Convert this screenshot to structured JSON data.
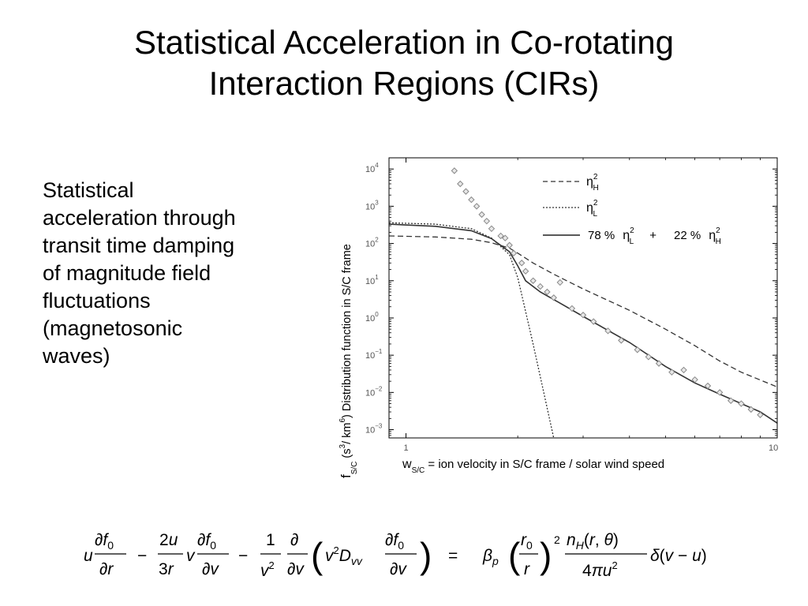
{
  "slide": {
    "title_lines": [
      "Statistical Acceleration in Co-rotating",
      "Interaction Regions (CIRs)"
    ],
    "body_lines": [
      "Statistical",
      "acceleration through",
      "transit time damping",
      "of magnitude field",
      "fluctuations",
      "(magnetosonic",
      "waves)"
    ]
  },
  "chart_data": {
    "type": "line",
    "xscale": "log",
    "yscale": "log",
    "xlim": [
      0.9,
      10
    ],
    "ylim": [
      0.0006,
      20000
    ],
    "y_tick_values": [
      0.001,
      0.01,
      0.1,
      1,
      10,
      100,
      1000,
      10000
    ],
    "y_tick_labels": [
      [
        "10",
        "−3"
      ],
      [
        "10",
        "−2"
      ],
      [
        "10",
        "−1"
      ],
      [
        "10",
        "0"
      ],
      [
        "10",
        "1"
      ],
      [
        "10",
        "2"
      ],
      [
        "10",
        "3"
      ],
      [
        "10",
        "4"
      ]
    ],
    "x_tick_values": [
      1,
      10
    ],
    "x_tick_labels": [
      "1",
      "10"
    ],
    "ylabel": {
      "main": "f",
      "sub": "S/C",
      "open": " (s",
      "sup1": "3",
      "mid": "/ km",
      "sup2": "6",
      "close": ") Distribution function in S/C frame"
    },
    "xlabel": {
      "main": "w",
      "sub": "S/C",
      "rest": " = ion velocity in S/C frame / solar wind speed"
    },
    "legend": {
      "position": "top-right",
      "items": [
        {
          "style": "dashed",
          "symbol": "η",
          "sup": "2",
          "sub": "H"
        },
        {
          "style": "dotted",
          "symbol": "η",
          "sup": "2",
          "sub": "L"
        },
        {
          "style": "solid",
          "pct1": "78 %",
          "sym1": "η",
          "sup1": "2",
          "sub1": "L",
          "plus": "+",
          "pct2": "22 %",
          "sym2": "η",
          "sup2": "2",
          "sub2": "H"
        }
      ]
    },
    "series": [
      {
        "style": "dashed",
        "x": [
          0.9,
          1.2,
          1.5,
          1.7,
          1.9,
          2.0,
          2.2,
          2.5,
          3.0,
          4.0,
          5.0,
          6.0,
          7.0,
          8.0,
          10.0
        ],
        "y": [
          160,
          150,
          130,
          105,
          75,
          55,
          30,
          15,
          6,
          1.6,
          0.5,
          0.18,
          0.07,
          0.035,
          0.014
        ]
      },
      {
        "style": "dotted",
        "x": [
          0.9,
          1.2,
          1.5,
          1.7,
          1.9,
          2.0,
          2.1,
          2.2,
          2.35,
          2.5
        ],
        "y": [
          360,
          330,
          250,
          140,
          50,
          12,
          1.5,
          0.2,
          0.01,
          0.0006
        ]
      },
      {
        "style": "solid",
        "x": [
          0.9,
          1.2,
          1.5,
          1.7,
          1.9,
          2.0,
          2.1,
          2.3,
          2.6,
          3.0,
          4.0,
          5.0,
          6.0,
          7.0,
          8.0,
          9.0,
          10.0
        ],
        "y": [
          330,
          290,
          220,
          135,
          60,
          25,
          10,
          5,
          2.5,
          1.1,
          0.22,
          0.05,
          0.018,
          0.009,
          0.005,
          0.003,
          0.0015
        ]
      }
    ],
    "points": {
      "marker": "diamond",
      "x": [
        1.35,
        1.4,
        1.45,
        1.5,
        1.55,
        1.6,
        1.65,
        1.7,
        1.8,
        1.85,
        1.9,
        1.95,
        2.05,
        2.1,
        2.2,
        2.3,
        2.4,
        2.5,
        2.6,
        2.8,
        3.0,
        3.2,
        3.5,
        3.8,
        4.2,
        4.5,
        4.8,
        5.2,
        5.6,
        6.0,
        6.5,
        7.0,
        7.5,
        8.0,
        8.5,
        9.0
      ],
      "y": [
        9000,
        4000,
        2500,
        1500,
        1000,
        600,
        400,
        250,
        160,
        140,
        90,
        55,
        30,
        18,
        10,
        7,
        5,
        3.5,
        9,
        1.8,
        1.2,
        0.8,
        0.45,
        0.25,
        0.14,
        0.09,
        0.06,
        0.035,
        0.04,
        0.022,
        0.015,
        0.01,
        0.006,
        0.005,
        0.0035,
        0.0025
      ]
    }
  }
}
